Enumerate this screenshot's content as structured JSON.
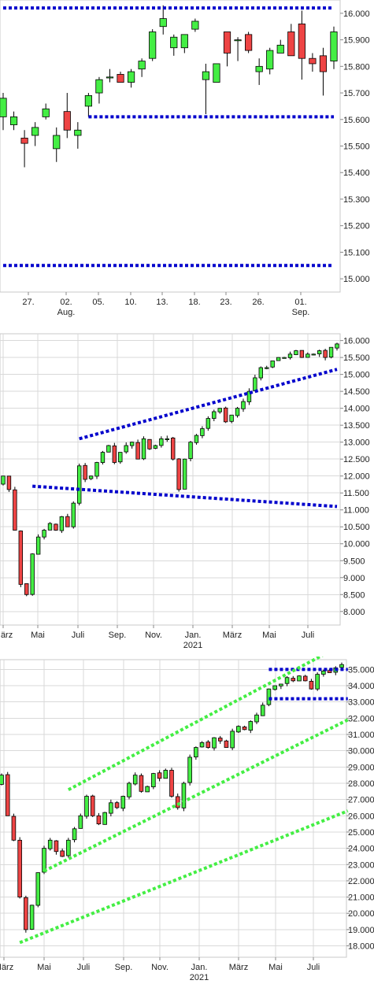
{
  "chart_data": [
    {
      "type": "candlestick",
      "y_ticks": [
        "15.000",
        "15.100",
        "15.200",
        "15.300",
        "15.400",
        "15.500",
        "15.600",
        "15.700",
        "15.800",
        "15.900",
        "16.000"
      ],
      "x_ticks": [
        {
          "label": "27.",
          "sublabel": ""
        },
        {
          "label": "02.",
          "sublabel": "Aug."
        },
        {
          "label": "05.",
          "sublabel": ""
        },
        {
          "label": "10.",
          "sublabel": ""
        },
        {
          "label": "13.",
          "sublabel": ""
        },
        {
          "label": "18.",
          "sublabel": ""
        },
        {
          "label": "23.",
          "sublabel": ""
        },
        {
          "label": "26.",
          "sublabel": ""
        },
        {
          "label": "01.",
          "sublabel": "Sep."
        }
      ],
      "ylim": [
        14950,
        16050
      ],
      "grid": false,
      "colors": {
        "up": "#44ee44",
        "down": "#ee4444",
        "support": "#0000cc"
      },
      "candles": [
        {
          "o": 15610,
          "h": 15700,
          "l": 15560,
          "c": 15680
        },
        {
          "o": 15580,
          "h": 15630,
          "l": 15560,
          "c": 15610
        },
        {
          "o": 15530,
          "h": 15560,
          "l": 15420,
          "c": 15510
        },
        {
          "o": 15540,
          "h": 15590,
          "l": 15500,
          "c": 15570
        },
        {
          "o": 15610,
          "h": 15660,
          "l": 15600,
          "c": 15640
        },
        {
          "o": 15490,
          "h": 15570,
          "l": 15440,
          "c": 15540
        },
        {
          "o": 15630,
          "h": 15700,
          "l": 15530,
          "c": 15560
        },
        {
          "o": 15540,
          "h": 15590,
          "l": 15490,
          "c": 15560
        },
        {
          "o": 15650,
          "h": 15700,
          "l": 15610,
          "c": 15690
        },
        {
          "o": 15700,
          "h": 15760,
          "l": 15660,
          "c": 15750
        },
        {
          "o": 15760,
          "h": 15790,
          "l": 15740,
          "c": 15760
        },
        {
          "o": 15770,
          "h": 15780,
          "l": 15740,
          "c": 15740
        },
        {
          "o": 15740,
          "h": 15790,
          "l": 15720,
          "c": 15780
        },
        {
          "o": 15790,
          "h": 15830,
          "l": 15760,
          "c": 15820
        },
        {
          "o": 15830,
          "h": 15940,
          "l": 15820,
          "c": 15930
        },
        {
          "o": 15950,
          "h": 16030,
          "l": 15920,
          "c": 15980
        },
        {
          "o": 15870,
          "h": 15920,
          "l": 15840,
          "c": 15910
        },
        {
          "o": 15870,
          "h": 15920,
          "l": 15850,
          "c": 15920
        },
        {
          "o": 15940,
          "h": 15980,
          "l": 15930,
          "c": 15970
        },
        {
          "o": 15750,
          "h": 15810,
          "l": 15620,
          "c": 15780
        },
        {
          "o": 15740,
          "h": 15810,
          "l": 15740,
          "c": 15810
        },
        {
          "o": 15930,
          "h": 15930,
          "l": 15800,
          "c": 15850
        },
        {
          "o": 15900,
          "h": 15910,
          "l": 15820,
          "c": 15900
        },
        {
          "o": 15920,
          "h": 15930,
          "l": 15850,
          "c": 15860
        },
        {
          "o": 15780,
          "h": 15830,
          "l": 15730,
          "c": 15800
        },
        {
          "o": 15790,
          "h": 15870,
          "l": 15770,
          "c": 15860
        },
        {
          "o": 15850,
          "h": 15900,
          "l": 15850,
          "c": 15880
        },
        {
          "o": 15930,
          "h": 15960,
          "l": 15840,
          "c": 15840
        },
        {
          "o": 15960,
          "h": 16010,
          "l": 15750,
          "c": 15830
        },
        {
          "o": 15830,
          "h": 15850,
          "l": 15780,
          "c": 15810
        },
        {
          "o": 15840,
          "h": 15870,
          "l": 15690,
          "c": 15780
        },
        {
          "o": 15820,
          "h": 15950,
          "l": 15790,
          "c": 15930
        }
      ],
      "support_lines": [
        {
          "from": {
            "x": 0,
            "y": 16020
          },
          "to": {
            "x": 31,
            "y": 16020
          }
        },
        {
          "from": {
            "x": 8,
            "y": 15610
          },
          "to": {
            "x": 31,
            "y": 15610
          }
        },
        {
          "from": {
            "x": 0,
            "y": 15050
          },
          "to": {
            "x": 31,
            "y": 15050
          }
        }
      ]
    },
    {
      "type": "candlestick",
      "y_ticks": [
        "8.000",
        "8.500",
        "9.000",
        "9.500",
        "10.000",
        "10.500",
        "11.000",
        "11.500",
        "12.000",
        "12.500",
        "13.000",
        "13.500",
        "14.000",
        "14.500",
        "15.000",
        "15.500",
        "16.000"
      ],
      "x_ticks": [
        {
          "label": "März",
          "sublabel": ""
        },
        {
          "label": "Mai",
          "sublabel": ""
        },
        {
          "label": "Juli",
          "sublabel": ""
        },
        {
          "label": "Sep.",
          "sublabel": ""
        },
        {
          "label": "Nov.",
          "sublabel": ""
        },
        {
          "label": "Jan.",
          "sublabel": "2021"
        },
        {
          "label": "März",
          "sublabel": ""
        },
        {
          "label": "Mai",
          "sublabel": ""
        },
        {
          "label": "Juli",
          "sublabel": ""
        }
      ],
      "ylim": [
        7600,
        16200
      ],
      "grid": true,
      "colors": {
        "up": "#44ee44",
        "down": "#ee4444",
        "trend": "#0000cc"
      },
      "close_path": [
        12000,
        11600,
        10400,
        8800,
        8500,
        9700,
        10200,
        10400,
        10600,
        10400,
        10800,
        10500,
        11200,
        12300,
        11900,
        12000,
        12400,
        12700,
        12900,
        12400,
        12700,
        12900,
        13000,
        12500,
        13100,
        12800,
        12900,
        13100,
        13100,
        12500,
        11600,
        12500,
        13000,
        13200,
        13400,
        13700,
        13900,
        14000,
        13600,
        13800,
        14000,
        14200,
        14500,
        14900,
        15200,
        15200,
        15400,
        15500,
        15500,
        15600,
        15700,
        15500,
        15600,
        15600,
        15700,
        15500,
        15800,
        15900
      ],
      "trend_lines": [
        {
          "from": {
            "x": 13,
            "y": 13100
          },
          "to": {
            "x": 57,
            "y": 15150
          }
        },
        {
          "from": {
            "x": 5,
            "y": 11700
          },
          "to": {
            "x": 57,
            "y": 11100
          }
        }
      ]
    },
    {
      "type": "candlestick",
      "y_ticks": [
        "18.000",
        "19.000",
        "20.000",
        "21.000",
        "22.000",
        "23.000",
        "24.000",
        "25.000",
        "26.000",
        "27.000",
        "28.000",
        "29.000",
        "30.000",
        "31.000",
        "32.000",
        "33.000",
        "34.000",
        "35.000"
      ],
      "x_ticks": [
        {
          "label": "März",
          "sublabel": ""
        },
        {
          "label": "Mai",
          "sublabel": ""
        },
        {
          "label": "Juli",
          "sublabel": ""
        },
        {
          "label": "Sep.",
          "sublabel": ""
        },
        {
          "label": "Nov.",
          "sublabel": ""
        },
        {
          "label": "Jan.",
          "sublabel": "2021"
        },
        {
          "label": "März",
          "sublabel": ""
        },
        {
          "label": "Mai",
          "sublabel": ""
        },
        {
          "label": "Juli",
          "sublabel": ""
        }
      ],
      "ylim": [
        17300,
        35600
      ],
      "grid": true,
      "colors": {
        "up": "#44ee44",
        "down": "#ee4444",
        "trend": "#0000cc",
        "channel": "#44ee44"
      },
      "close_path": [
        28500,
        26000,
        24500,
        21000,
        19000,
        20500,
        22500,
        24000,
        24500,
        23800,
        23500,
        24500,
        25200,
        26000,
        27200,
        26000,
        25500,
        26200,
        26800,
        26500,
        27200,
        28000,
        28500,
        27500,
        27800,
        28600,
        28300,
        28800,
        27200,
        26500,
        28000,
        29600,
        30200,
        30500,
        30200,
        30800,
        30600,
        30200,
        31200,
        31500,
        31300,
        31800,
        32200,
        32800,
        33800,
        34000,
        34100,
        34500,
        34300,
        34600,
        34300,
        33800,
        34700,
        34900,
        34800,
        35100,
        35300
      ],
      "trend_lines": [
        {
          "from": {
            "x": 44,
            "y": 35000
          },
          "to": {
            "x": 57,
            "y": 35000
          }
        },
        {
          "from": {
            "x": 44,
            "y": 33200
          },
          "to": {
            "x": 57,
            "y": 33200
          }
        }
      ],
      "channel_lines": [
        {
          "from": {
            "x": 11,
            "y": 27600
          },
          "to": {
            "x": 55,
            "y": 36300
          }
        },
        {
          "from": {
            "x": 7,
            "y": 22600
          },
          "to": {
            "x": 57,
            "y": 31900
          }
        },
        {
          "from": {
            "x": 3,
            "y": 18200
          },
          "to": {
            "x": 57,
            "y": 26300
          }
        }
      ]
    }
  ]
}
